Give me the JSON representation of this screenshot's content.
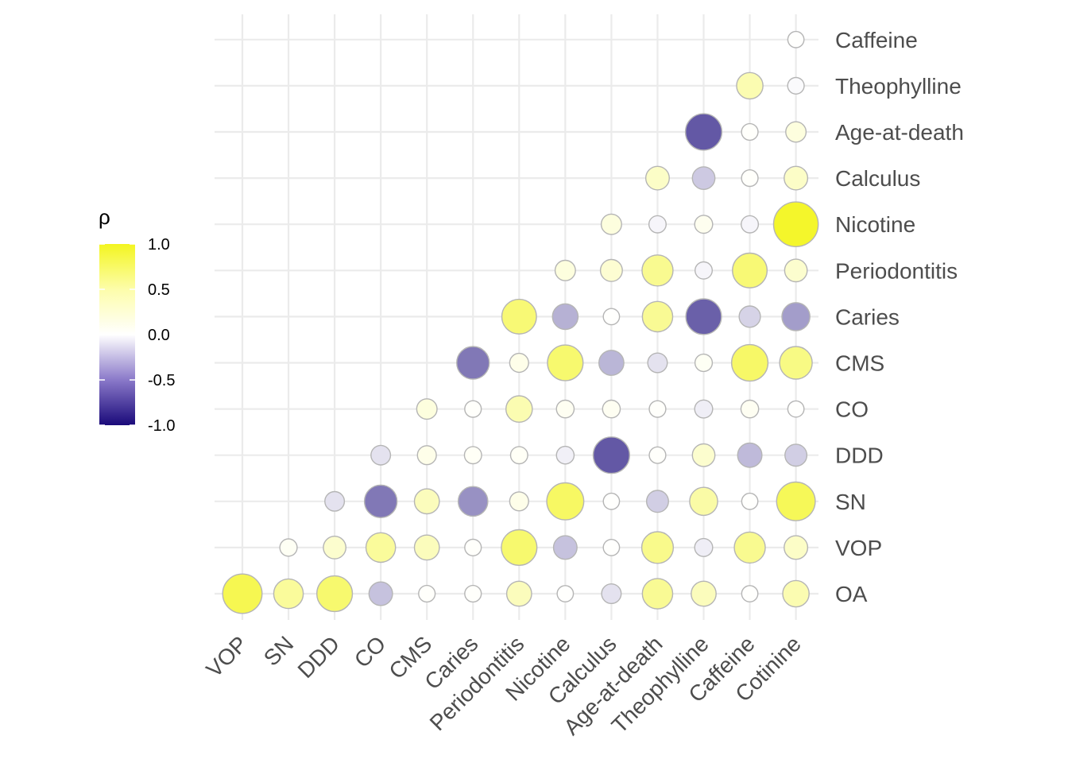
{
  "chart_data": {
    "type": "correlogram",
    "x_labels": [
      "VOP",
      "SN",
      "DDD",
      "CO",
      "CMS",
      "Caries",
      "Periodontitis",
      "Nicotine",
      "Calculus",
      "Age-at-death",
      "Theophylline",
      "Caffeine",
      "Cotinine"
    ],
    "y_labels": [
      "OA",
      "VOP",
      "SN",
      "DDD",
      "CO",
      "CMS",
      "Caries",
      "Periodontitis",
      "Nicotine",
      "Calculus",
      "Age-at-death",
      "Theophylline",
      "Caffeine"
    ],
    "cells": [
      {
        "x": "VOP",
        "y": "OA",
        "value": 0.78
      },
      {
        "x": "SN",
        "y": "OA",
        "value": 0.45
      },
      {
        "x": "DDD",
        "y": "OA",
        "value": 0.65
      },
      {
        "x": "CO",
        "y": "OA",
        "value": -0.25
      },
      {
        "x": "CMS",
        "y": "OA",
        "value": 0.02
      },
      {
        "x": "Caries",
        "y": "OA",
        "value": 0.02
      },
      {
        "x": "Periodontitis",
        "y": "OA",
        "value": 0.3
      },
      {
        "x": "Nicotine",
        "y": "OA",
        "value": 0.01
      },
      {
        "x": "Calculus",
        "y": "OA",
        "value": -0.12
      },
      {
        "x": "Age-at-death",
        "y": "OA",
        "value": 0.48
      },
      {
        "x": "Theophylline",
        "y": "OA",
        "value": 0.3
      },
      {
        "x": "Caffeine",
        "y": "OA",
        "value": 0.01
      },
      {
        "x": "Cotinine",
        "y": "OA",
        "value": 0.35
      },
      {
        "x": "SN",
        "y": "VOP",
        "value": 0.05
      },
      {
        "x": "DDD",
        "y": "VOP",
        "value": 0.22
      },
      {
        "x": "CO",
        "y": "VOP",
        "value": 0.45
      },
      {
        "x": "CMS",
        "y": "VOP",
        "value": 0.3
      },
      {
        "x": "Caries",
        "y": "VOP",
        "value": 0.02
      },
      {
        "x": "Periodontitis",
        "y": "VOP",
        "value": 0.65
      },
      {
        "x": "Nicotine",
        "y": "VOP",
        "value": -0.25
      },
      {
        "x": "Calculus",
        "y": "VOP",
        "value": 0.01
      },
      {
        "x": "Age-at-death",
        "y": "VOP",
        "value": 0.52
      },
      {
        "x": "Theophylline",
        "y": "VOP",
        "value": -0.07
      },
      {
        "x": "Caffeine",
        "y": "VOP",
        "value": 0.5
      },
      {
        "x": "Cotinine",
        "y": "VOP",
        "value": 0.25
      },
      {
        "x": "DDD",
        "y": "SN",
        "value": -0.12
      },
      {
        "x": "CO",
        "y": "SN",
        "value": -0.55
      },
      {
        "x": "CMS",
        "y": "SN",
        "value": 0.3
      },
      {
        "x": "Caries",
        "y": "SN",
        "value": -0.45
      },
      {
        "x": "Periodontitis",
        "y": "SN",
        "value": 0.1
      },
      {
        "x": "Nicotine",
        "y": "SN",
        "value": 0.7
      },
      {
        "x": "Calculus",
        "y": "SN",
        "value": 0.01
      },
      {
        "x": "Age-at-death",
        "y": "SN",
        "value": -0.2
      },
      {
        "x": "Theophylline",
        "y": "SN",
        "value": 0.4
      },
      {
        "x": "Caffeine",
        "y": "SN",
        "value": 0.01
      },
      {
        "x": "Cotinine",
        "y": "SN",
        "value": 0.75
      },
      {
        "x": "CO",
        "y": "DDD",
        "value": -0.12
      },
      {
        "x": "CMS",
        "y": "DDD",
        "value": 0.1
      },
      {
        "x": "Caries",
        "y": "DDD",
        "value": 0.04
      },
      {
        "x": "Periodontitis",
        "y": "DDD",
        "value": 0.04
      },
      {
        "x": "Nicotine",
        "y": "DDD",
        "value": -0.06
      },
      {
        "x": "Calculus",
        "y": "DDD",
        "value": -0.68
      },
      {
        "x": "Age-at-death",
        "y": "DDD",
        "value": 0.02
      },
      {
        "x": "Theophylline",
        "y": "DDD",
        "value": 0.22
      },
      {
        "x": "Caffeine",
        "y": "DDD",
        "value": -0.28
      },
      {
        "x": "Cotinine",
        "y": "DDD",
        "value": -0.2
      },
      {
        "x": "CMS",
        "y": "CO",
        "value": 0.15
      },
      {
        "x": "Caries",
        "y": "CO",
        "value": 0.02
      },
      {
        "x": "Periodontitis",
        "y": "CO",
        "value": 0.35
      },
      {
        "x": "Nicotine",
        "y": "CO",
        "value": 0.06
      },
      {
        "x": "Calculus",
        "y": "CO",
        "value": 0.06
      },
      {
        "x": "Age-at-death",
        "y": "CO",
        "value": 0.02
      },
      {
        "x": "Theophylline",
        "y": "CO",
        "value": -0.07
      },
      {
        "x": "Caffeine",
        "y": "CO",
        "value": 0.06
      },
      {
        "x": "Cotinine",
        "y": "CO",
        "value": 0.01
      },
      {
        "x": "Caries",
        "y": "CMS",
        "value": -0.55
      },
      {
        "x": "Periodontitis",
        "y": "CMS",
        "value": 0.1
      },
      {
        "x": "Nicotine",
        "y": "CMS",
        "value": 0.65
      },
      {
        "x": "Calculus",
        "y": "CMS",
        "value": -0.3
      },
      {
        "x": "Age-at-death",
        "y": "CMS",
        "value": -0.12
      },
      {
        "x": "Theophylline",
        "y": "CMS",
        "value": 0.05
      },
      {
        "x": "Caffeine",
        "y": "CMS",
        "value": 0.68
      },
      {
        "x": "Cotinine",
        "y": "CMS",
        "value": 0.55
      },
      {
        "x": "Periodontitis",
        "y": "Caries",
        "value": 0.62
      },
      {
        "x": "Nicotine",
        "y": "Caries",
        "value": -0.32
      },
      {
        "x": "Calculus",
        "y": "Caries",
        "value": 0.01
      },
      {
        "x": "Age-at-death",
        "y": "Caries",
        "value": 0.48
      },
      {
        "x": "Theophylline",
        "y": "Caries",
        "value": -0.65
      },
      {
        "x": "Caffeine",
        "y": "Caries",
        "value": -0.18
      },
      {
        "x": "Cotinine",
        "y": "Caries",
        "value": -0.4
      },
      {
        "x": "Nicotine",
        "y": "Periodontitis",
        "value": 0.15
      },
      {
        "x": "Calculus",
        "y": "Periodontitis",
        "value": 0.2
      },
      {
        "x": "Age-at-death",
        "y": "Periodontitis",
        "value": 0.5
      },
      {
        "x": "Theophylline",
        "y": "Periodontitis",
        "value": -0.04
      },
      {
        "x": "Caffeine",
        "y": "Periodontitis",
        "value": 0.62
      },
      {
        "x": "Cotinine",
        "y": "Periodontitis",
        "value": 0.22
      },
      {
        "x": "Calculus",
        "y": "Nicotine",
        "value": 0.15
      },
      {
        "x": "Age-at-death",
        "y": "Nicotine",
        "value": -0.04
      },
      {
        "x": "Theophylline",
        "y": "Nicotine",
        "value": 0.07
      },
      {
        "x": "Caffeine",
        "y": "Nicotine",
        "value": -0.04
      },
      {
        "x": "Cotinine",
        "y": "Nicotine",
        "value": 0.95
      },
      {
        "x": "Age-at-death",
        "y": "Calculus",
        "value": 0.25
      },
      {
        "x": "Theophylline",
        "y": "Calculus",
        "value": -0.22
      },
      {
        "x": "Caffeine",
        "y": "Calculus",
        "value": 0.02
      },
      {
        "x": "Cotinine",
        "y": "Calculus",
        "value": 0.25
      },
      {
        "x": "Theophylline",
        "y": "Age-at-death",
        "value": -0.68
      },
      {
        "x": "Caffeine",
        "y": "Age-at-death",
        "value": 0.02
      },
      {
        "x": "Cotinine",
        "y": "Age-at-death",
        "value": 0.15
      },
      {
        "x": "Caffeine",
        "y": "Theophylline",
        "value": 0.35
      },
      {
        "x": "Cotinine",
        "y": "Theophylline",
        "value": -0.02
      },
      {
        "x": "Cotinine",
        "y": "Caffeine",
        "value": 0.01
      }
    ],
    "legend": {
      "title": "ρ",
      "ticks": [
        "1.0",
        "0.5",
        "0.0",
        "-0.5",
        "-1.0"
      ],
      "range": [
        -1,
        1
      ],
      "placement": "left",
      "colors": {
        "low": "#1a0a7a",
        "mid": "#ffffff",
        "high": "#f3f520"
      }
    },
    "grid": true,
    "xlabel": "",
    "ylabel": ""
  }
}
